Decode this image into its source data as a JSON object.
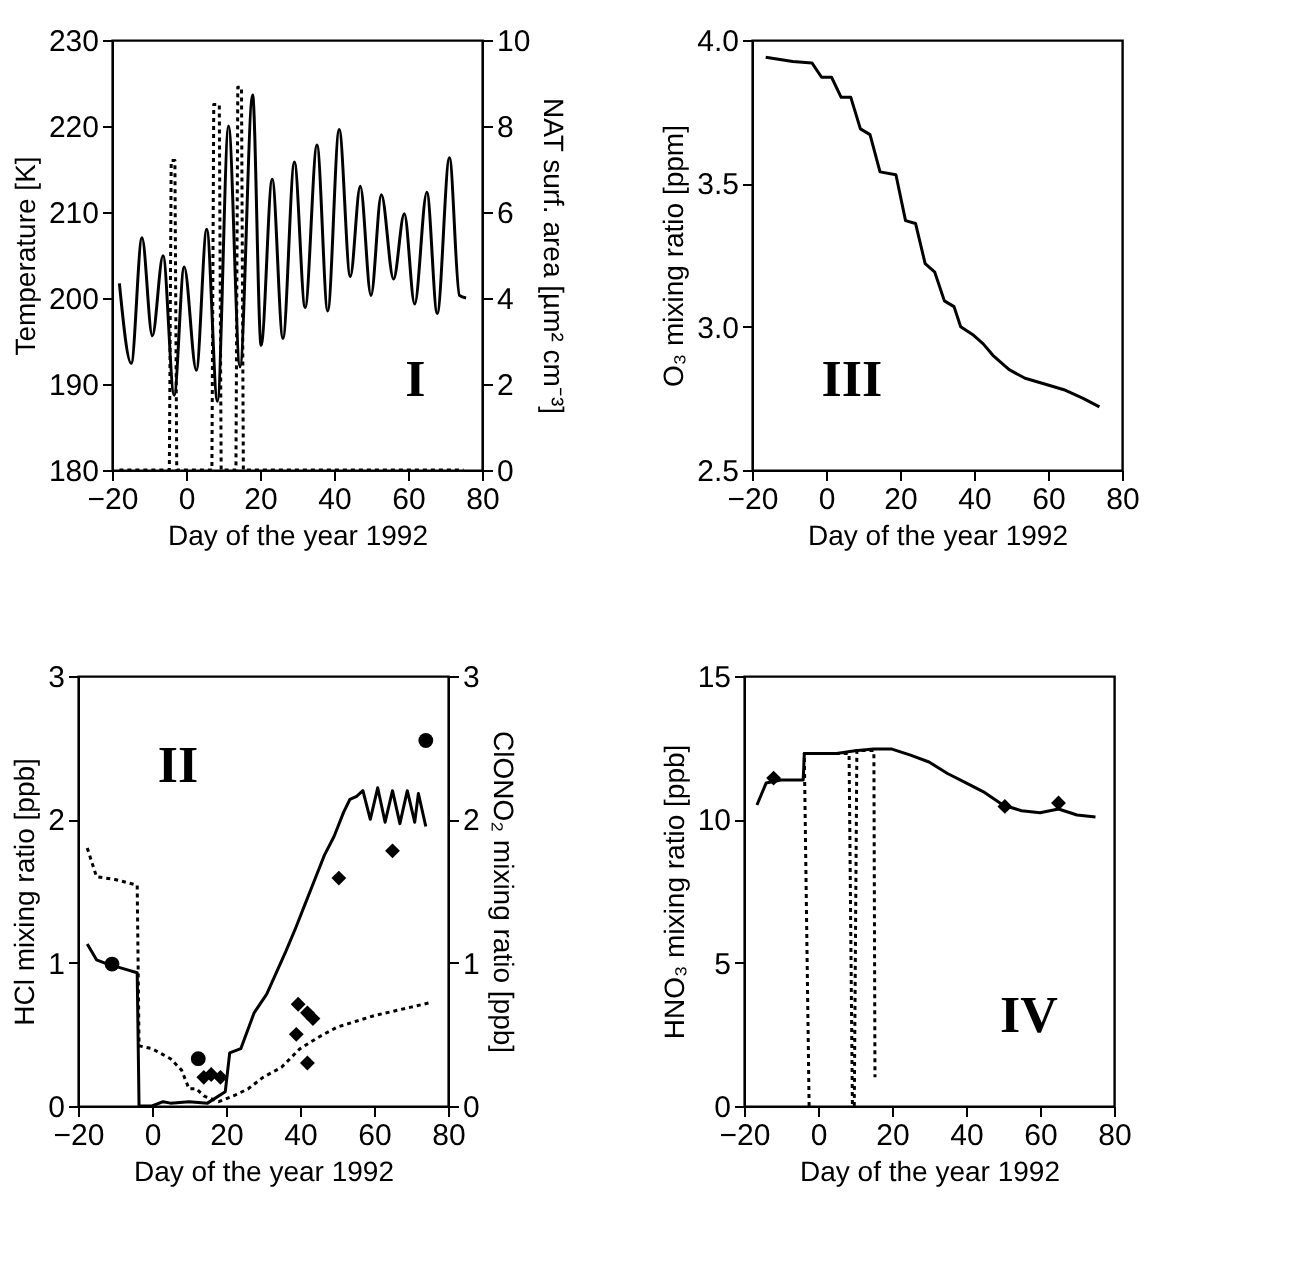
{
  "chart_data": [
    {
      "type": "line",
      "xlabel": "Day of the year 1992",
      "ylabel": "Temperature [K]",
      "y2label": "NAT surf. area [µm² cm⁻³]",
      "xlim": [
        -20,
        80
      ],
      "xticks": [
        -20,
        0,
        20,
        40,
        60,
        80
      ],
      "ylim": [
        180,
        230
      ],
      "yticks": [
        180,
        190,
        200,
        210,
        220,
        230
      ],
      "y2lim": [
        0,
        10
      ],
      "y2ticks": [
        0,
        2,
        4,
        6,
        8,
        10
      ],
      "annotations": [
        "I"
      ],
      "series": [
        {
          "color": "#000000",
          "line_style": "solid",
          "x": [
            -18,
            -14.8,
            -11.9,
            -9.1,
            -6.2,
            -3.2,
            -0.5,
            2.8,
            5.6,
            8.5,
            11.5,
            14.6,
            18,
            20.3,
            23.3,
            26.2,
            29.3,
            32.2,
            35.4,
            38.3,
            41.4,
            44.4,
            47.1,
            50,
            52.8,
            56.1,
            59,
            61.8,
            65.1,
            67.9,
            71.2,
            73.9,
            75.7
          ],
          "values": [
            201.7,
            192.4,
            207,
            195.6,
            204.9,
            188.7,
            203.6,
            191.6,
            208,
            188,
            220,
            192,
            223.6,
            194.5,
            213.8,
            195.3,
            215.8,
            198.9,
            217.8,
            198.5,
            219.6,
            202.5,
            213,
            200.3,
            212,
            202.2,
            209.8,
            199.3,
            212.3,
            198.2,
            216.3,
            200.3,
            200
          ]
        },
        {
          "color": "#000000",
          "line_style": "dotted",
          "axis": "y2",
          "x": [
            -18,
            -4.5,
            -4,
            -3,
            -2.5,
            7,
            7.5,
            9,
            9.5,
            13.5,
            14,
            15,
            15.5,
            75
          ],
          "values": [
            0,
            0,
            7.2,
            7.2,
            0,
            0,
            8.5,
            8.5,
            0,
            0,
            8.9,
            8.9,
            0,
            0
          ]
        }
      ]
    },
    {
      "type": "line",
      "xlabel": "Day of the year 1992",
      "ylabel": "O₃ mixing ratio [ppm]",
      "xlim": [
        -20,
        80
      ],
      "xticks": [
        -20,
        0,
        20,
        40,
        60,
        80
      ],
      "ylim": [
        2.5,
        4
      ],
      "yticks": [
        2.5,
        {
          "value": 3,
          "label": "3.0"
        },
        3.5,
        {
          "value": 4,
          "label": "4.0"
        }
      ],
      "annotations": [
        "III"
      ],
      "series": [
        {
          "color": "#000000",
          "line_style": "solid",
          "x": [
            -16.3,
            -9,
            -3.8,
            -1.2,
            1.5,
            4.1,
            6.7,
            9.3,
            11.9,
            14.6,
            18.9,
            21.5,
            24.2,
            26.8,
            29.4,
            32,
            34.6,
            36.4,
            39.9,
            42.5,
            45.1,
            49.5,
            53.8,
            59.1,
            64.3,
            69.5,
            73.9
          ],
          "values": [
            3.94,
            3.925,
            3.92,
            3.87,
            3.87,
            3.8,
            3.8,
            3.69,
            3.67,
            3.54,
            3.53,
            3.37,
            3.36,
            3.22,
            3.19,
            3.09,
            3.07,
            3,
            2.97,
            2.94,
            2.9,
            2.85,
            2.82,
            2.8,
            2.78,
            2.75,
            2.72
          ]
        }
      ]
    },
    {
      "type": "line",
      "xlabel": "Day of the year 1992",
      "ylabel": "HCl mixing ratio [ppb]",
      "y2label": "ClONO₂ mixing ratio [ppb]",
      "xlim": [
        -20,
        80
      ],
      "xticks": [
        -20,
        0,
        20,
        40,
        60,
        80
      ],
      "ylim": [
        0,
        3
      ],
      "yticks": [
        0,
        1,
        2,
        3
      ],
      "y2lim": [
        0,
        3
      ],
      "y2ticks": [
        0,
        1,
        2,
        3
      ],
      "annotations": [
        "II"
      ],
      "series": [
        {
          "color": "#000000",
          "line_style": "solid",
          "x": [
            -17.5,
            -15,
            -12,
            -8,
            -4,
            -3.5,
            0,
            3,
            5,
            10,
            15,
            19.8,
            21,
            24,
            27.6,
            31,
            33.6,
            36.2,
            38.8,
            41.4,
            44,
            46.6,
            49.2,
            51.8,
            53.5,
            55.3,
            57,
            59,
            61,
            63,
            65,
            67,
            69,
            71,
            72,
            74
          ],
          "values": [
            1.13,
            1.02,
            0.99,
            0.96,
            0.93,
            0,
            0,
            0.03,
            0.02,
            0.03,
            0.02,
            0.1,
            0.37,
            0.4,
            0.65,
            0.78,
            0.93,
            1.08,
            1.24,
            1.41,
            1.58,
            1.75,
            1.88,
            2.05,
            2.14,
            2.16,
            2.2,
            2,
            2.22,
            1.98,
            2.2,
            1.97,
            2.2,
            1.98,
            2.18,
            1.95
          ]
        },
        {
          "color": "#000000",
          "line_style": "dotted",
          "axis": "y2",
          "x": [
            -17.5,
            -15,
            -10,
            -4,
            -3.5,
            0,
            5,
            8,
            10,
            12,
            14,
            18,
            22,
            26,
            30,
            35,
            40,
            45,
            50,
            60,
            70,
            75
          ],
          "values": [
            1.8,
            1.6,
            1.58,
            1.54,
            0.42,
            0.4,
            0.33,
            0.25,
            0.12,
            0.12,
            0.07,
            0.03,
            0.07,
            0.12,
            0.2,
            0.27,
            0.4,
            0.48,
            0.55,
            0.63,
            0.69,
            0.72
          ]
        },
        {
          "type": "scatter",
          "color": "#000000",
          "marker": "circle",
          "x": [
            -10.8,
            12.5,
            74
          ],
          "values": [
            0.99,
            0.33,
            2.55
          ]
        },
        {
          "type": "scatter",
          "color": "#000000",
          "marker": "diamond",
          "x": [
            43.5,
            50.5,
            65
          ],
          "values": [
            0.61,
            1.59,
            1.78
          ]
        },
        {
          "type": "scatter",
          "color": "#000000",
          "marker": "diamond",
          "axis": "y2",
          "x": [
            14,
            16,
            18.5,
            39,
            39.5,
            42,
            42
          ],
          "values": [
            0.2,
            0.22,
            0.2,
            0.5,
            0.71,
            0.65,
            0.3
          ]
        }
      ]
    },
    {
      "type": "line",
      "xlabel": "Day of the year 1992",
      "ylabel": "HNO₃ mixing ratio [ppb]",
      "xlim": [
        -20,
        80
      ],
      "xticks": [
        -20,
        0,
        20,
        40,
        60,
        80
      ],
      "ylim": [
        0,
        15
      ],
      "yticks": [
        0,
        5,
        10,
        15
      ],
      "annotations": [
        "IV"
      ],
      "series": [
        {
          "color": "#000000",
          "line_style": "solid",
          "x": [
            -16.5,
            -14,
            -10,
            -4,
            -3.7,
            5,
            10,
            15,
            20,
            25,
            30,
            35,
            40,
            45,
            50,
            55,
            60,
            65,
            70,
            75
          ],
          "values": [
            10.5,
            11.27,
            11.37,
            11.37,
            12.3,
            12.3,
            12.39,
            12.45,
            12.45,
            12.24,
            12,
            11.6,
            11.27,
            10.94,
            10.5,
            10.3,
            10.23,
            10.36,
            10.15,
            10.08
          ]
        },
        {
          "color": "#000000",
          "line_style": "dotted",
          "x": [
            -2.4,
            -3.7,
            8.4,
            9.3,
            9.8,
            10.5,
            15.1,
            15.4
          ],
          "values": [
            0,
            12.3,
            12.3,
            0,
            0,
            12.4,
            12.4,
            1
          ]
        },
        {
          "type": "scatter",
          "color": "#000000",
          "marker": "diamond",
          "x": [
            -12,
            50.5,
            65
          ],
          "values": [
            11.44,
            10.45,
            10.57
          ]
        }
      ]
    }
  ]
}
